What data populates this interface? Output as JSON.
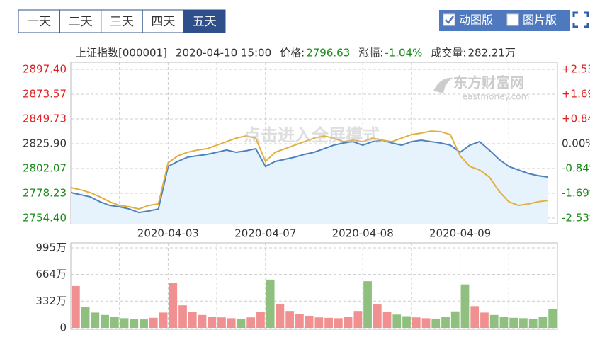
{
  "tabs": {
    "items": [
      "一天",
      "二天",
      "三天",
      "四天",
      "五天"
    ],
    "selected": 4
  },
  "toggles": [
    {
      "label": "动图版",
      "checked": true
    },
    {
      "label": "图片版",
      "checked": false
    }
  ],
  "info": {
    "symbol": "上证指数[000001]",
    "time": "2020-04-10 15:00",
    "price_label": "价格:",
    "price": "2796.63",
    "change_label": "涨幅:",
    "change": "-1.04%",
    "volume_label": "成交量:",
    "volume": "282.21万"
  },
  "chart_data": [
    {
      "type": "line",
      "watermark": "东方财富网",
      "watermark_sub": "eastmoney.com",
      "overlay_text": "点击进入全屏模式",
      "categories": [
        null,
        null,
        null,
        null,
        null,
        null,
        null,
        null,
        null,
        null,
        "2020-04-03",
        null,
        null,
        null,
        null,
        null,
        null,
        null,
        null,
        null,
        "2020-04-07",
        null,
        null,
        null,
        null,
        null,
        null,
        null,
        null,
        null,
        "2020-04-08",
        null,
        null,
        null,
        null,
        null,
        null,
        null,
        null,
        null,
        "2020-04-09",
        null,
        null,
        null,
        null,
        null,
        null,
        null,
        null,
        null
      ],
      "series": [
        {
          "color": "#4f81bd",
          "values": [
            2778.9,
            2776.9,
            2774.8,
            2770.1,
            2766.6,
            2765.3,
            2763.2,
            2759.8,
            2761.2,
            2763.2,
            2804.1,
            2808.9,
            2813.0,
            2814.3,
            2815.7,
            2817.7,
            2819.8,
            2817.7,
            2819.1,
            2821.1,
            2804.1,
            2808.9,
            2810.9,
            2813.0,
            2815.7,
            2817.7,
            2821.1,
            2824.5,
            2826.6,
            2827.9,
            2824.5,
            2827.9,
            2829.3,
            2826.6,
            2824.5,
            2827.9,
            2829.3,
            2827.9,
            2826.6,
            2824.5,
            2817.7,
            2824.5,
            2827.9,
            2819.8,
            2810.9,
            2804.1,
            2800.7,
            2797.3,
            2795.2,
            2793.9
          ]
        },
        {
          "color": "#e0b040",
          "values": [
            2783.7,
            2781.6,
            2778.9,
            2774.8,
            2770.1,
            2766.6,
            2765.3,
            2763.2,
            2766.6,
            2768.0,
            2807.5,
            2814.3,
            2817.7,
            2819.8,
            2821.1,
            2824.5,
            2827.9,
            2831.3,
            2833.4,
            2831.3,
            2808.9,
            2817.7,
            2821.1,
            2824.5,
            2827.9,
            2831.3,
            2833.4,
            2831.3,
            2827.9,
            2829.3,
            2827.9,
            2831.3,
            2829.3,
            2827.9,
            2831.3,
            2834.7,
            2836.1,
            2838.1,
            2837.5,
            2834.7,
            2814.3,
            2804.1,
            2800.7,
            2793.9,
            2780.3,
            2770.1,
            2766.6,
            2768.0,
            2770.1,
            2771.4
          ]
        }
      ],
      "ylim": [
        2754.4,
        2897.4
      ],
      "yticks": [
        {
          "value": 2897.4,
          "label": "2897.40"
        },
        {
          "value": 2873.57,
          "label": "2873.57"
        },
        {
          "value": 2849.73,
          "label": "2849.73"
        },
        {
          "value": 2825.9,
          "label": "2825.90"
        },
        {
          "value": 2802.07,
          "label": "2802.07"
        },
        {
          "value": 2778.23,
          "label": "2778.23"
        },
        {
          "value": 2754.4,
          "label": "2754.40"
        }
      ],
      "y2lim": [
        -2.53,
        2.53
      ],
      "y2ticks": [
        {
          "value": 2.53,
          "label": "+2.53%"
        },
        {
          "value": 1.69,
          "label": "+1.69%"
        },
        {
          "value": 0.84,
          "label": "+0.84%"
        },
        {
          "value": 0,
          "label": "0.00%"
        },
        {
          "value": -0.84,
          "label": "-0.84%"
        },
        {
          "value": -1.69,
          "label": "-1.69%"
        },
        {
          "value": -2.53,
          "label": "-2.53%"
        }
      ],
      "grid": true
    },
    {
      "type": "bar",
      "up_color": "#f09090",
      "down_color": "#90c080",
      "values": [
        520,
        260,
        190,
        160,
        140,
        120,
        110,
        105,
        125,
        190,
        560,
        280,
        200,
        160,
        140,
        130,
        120,
        115,
        130,
        200,
        600,
        300,
        210,
        170,
        150,
        130,
        125,
        120,
        140,
        210,
        580,
        290,
        200,
        165,
        145,
        130,
        120,
        115,
        135,
        205,
        540,
        270,
        190,
        160,
        140,
        125,
        120,
        115,
        140,
        230
      ],
      "ylim": [
        0,
        995
      ],
      "yticks": [
        {
          "value": 995,
          "label": "995万"
        },
        {
          "value": 664,
          "label": "664万"
        },
        {
          "value": 332,
          "label": "332万"
        },
        0
      ],
      "grid": true
    }
  ]
}
